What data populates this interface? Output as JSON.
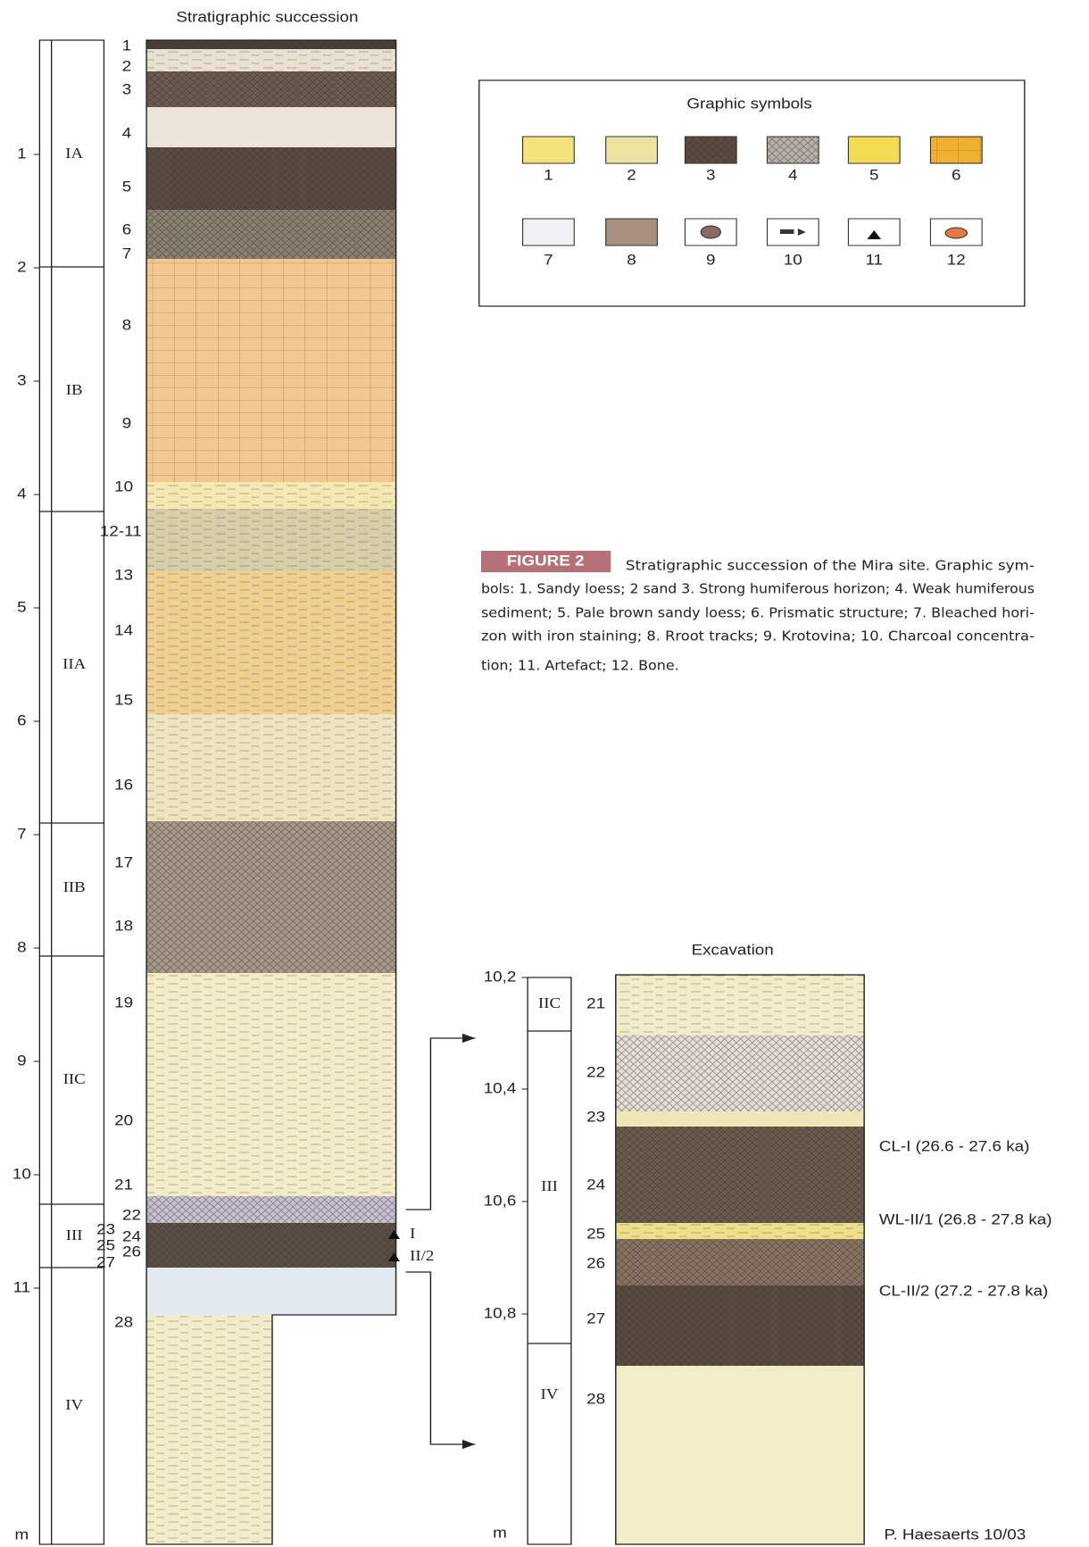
{
  "title": "Stratigraphic succession",
  "succession": {
    "depth_labels": [
      "1",
      "2",
      "3",
      "4",
      "5",
      "6",
      "7",
      "8",
      "9",
      "10",
      "11",
      "m"
    ],
    "units": [
      "IA",
      "IB",
      "IIA",
      "IIB",
      "IIC",
      "III",
      "IV"
    ],
    "layers": [
      "1",
      "2",
      "3",
      "4",
      "5",
      "6",
      "7",
      "8",
      "9",
      "10",
      "12-11",
      "13",
      "14",
      "15",
      "16",
      "17",
      "18",
      "19",
      "20",
      "21",
      "22",
      "23",
      "24",
      "25",
      "26",
      "27",
      "28"
    ],
    "markers": [
      "I",
      "II/2"
    ]
  },
  "legend": {
    "title": "Graphic symbols",
    "items": [
      "1",
      "2",
      "3",
      "4",
      "5",
      "6",
      "7",
      "8",
      "9",
      "10",
      "11",
      "12"
    ]
  },
  "caption": {
    "label": "FIGURE 2",
    "lines": [
      "Stratigraphic succession of the Mira site. Graphic sym-",
      "bols: 1. Sandy loess; 2 sand 3. Strong humiferous horizon; 4. Weak humiferous",
      "sediment; 5. Pale brown sandy loess; 6. Prismatic structure; 7. Bleached hori-",
      "zon with iron staining; 8. Rroot tracks; 9. Krotovina; 10. Charcoal concentra-",
      "tion; 11. Artefact; 12. Bone."
    ]
  },
  "excavation": {
    "title": "Excavation",
    "depth_labels": [
      "10,2",
      "10,4",
      "10,6",
      "10,8",
      "m"
    ],
    "units": [
      "IIC",
      "III",
      "IV"
    ],
    "layers": [
      "21",
      "22",
      "23",
      "24",
      "25",
      "26",
      "27",
      "28"
    ],
    "annotations": [
      "CL-I  (26.6 - 27.6 ka)",
      "WL-II/1 (26.8 - 27.8 ka)",
      "CL-II/2 (27.2 - 27.8 ka)"
    ],
    "credit": "P. Haesaerts 10/03"
  }
}
